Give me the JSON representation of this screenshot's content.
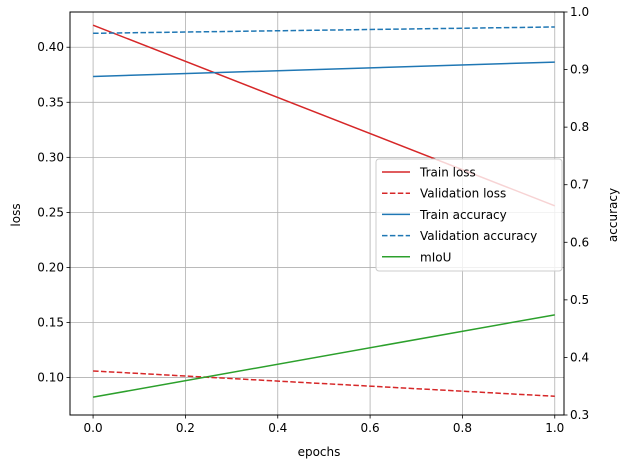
{
  "chart_data": {
    "type": "line",
    "x": [
      0.0,
      1.0
    ],
    "xlabel": "epochs",
    "xlim": [
      -0.05,
      1.02
    ],
    "xticks": [
      "0.0",
      "0.2",
      "0.4",
      "0.6",
      "0.8",
      "1.0"
    ],
    "ylabel_left": "loss",
    "ylim_left": [
      0.066,
      0.432
    ],
    "yticks_left": [
      "0.10",
      "0.15",
      "0.20",
      "0.25",
      "0.30",
      "0.35",
      "0.40"
    ],
    "ylabel_right": "accuracy",
    "ylim_right": [
      0.3,
      1.0
    ],
    "yticks_right": [
      "0.3",
      "0.4",
      "0.5",
      "0.6",
      "0.7",
      "0.8",
      "0.9",
      "1.0"
    ],
    "grid": true,
    "legend_position": "center-right",
    "series": [
      {
        "name": "Train loss",
        "axis": "left",
        "color": "#d62728",
        "style": "solid",
        "values": [
          0.42,
          0.256
        ]
      },
      {
        "name": "Validation loss",
        "axis": "left",
        "color": "#d62728",
        "style": "dashed",
        "values": [
          0.106,
          0.083
        ]
      },
      {
        "name": "Train accuracy",
        "axis": "right",
        "color": "#1f77b4",
        "style": "solid",
        "values": [
          0.888,
          0.913
        ]
      },
      {
        "name": "Validation accuracy",
        "axis": "right",
        "color": "#1f77b4",
        "style": "dashed",
        "values": [
          0.963,
          0.974
        ]
      },
      {
        "name": "mIoU",
        "axis": "right",
        "color": "#2ca02c",
        "style": "solid",
        "values": [
          0.331,
          0.474
        ]
      }
    ]
  }
}
